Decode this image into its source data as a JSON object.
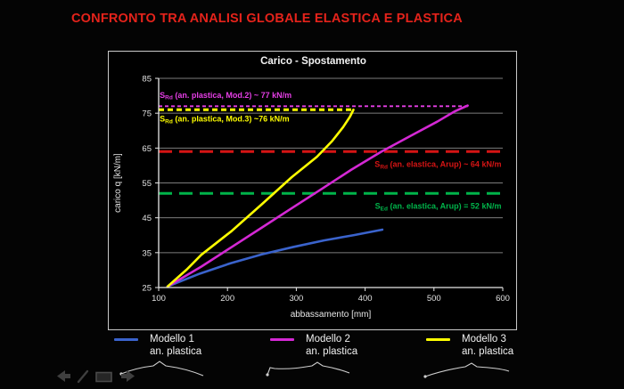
{
  "slide": {
    "title": "CONFRONTO TRA ANALISI GLOBALE ELASTICA E PLASTICA",
    "title_color": "#e5231b",
    "background": "#040404"
  },
  "chart_data": {
    "type": "line",
    "title": "Carico - Spostamento",
    "xlabel": "abbassamento [mm]",
    "ylabel": "carico q [kN/m]",
    "xlim": [
      100,
      600
    ],
    "ylim": [
      25,
      85
    ],
    "xticks": [
      100,
      200,
      300,
      400,
      500,
      600
    ],
    "yticks": [
      25,
      35,
      45,
      55,
      65,
      75,
      85
    ],
    "grid": true,
    "axis_color": "#e8e8e8",
    "grid_color": "#7d7d7d",
    "series": [
      {
        "name": "Modello 1 an. plastica",
        "color": "#3a63cc",
        "width": 2.6,
        "points": [
          [
            113,
            25.3
          ],
          [
            160,
            29
          ],
          [
            205,
            32
          ],
          [
            250,
            34.5
          ],
          [
            295,
            36.6
          ],
          [
            340,
            38.5
          ],
          [
            383,
            40
          ],
          [
            425,
            41.6
          ]
        ]
      },
      {
        "name": "Modello 2 an. plastica",
        "color": "#d428d4",
        "width": 2.6,
        "points": [
          [
            113,
            25.3
          ],
          [
            162,
            31
          ],
          [
            206,
            36.6
          ],
          [
            250,
            42.2
          ],
          [
            293,
            47.7
          ],
          [
            337,
            53.3
          ],
          [
            380,
            58.8
          ],
          [
            423,
            63.9
          ],
          [
            467,
            68.6
          ],
          [
            505,
            72.6
          ],
          [
            530,
            75.5
          ],
          [
            549,
            77.2
          ]
        ]
      },
      {
        "name": "Modello 3 an. plastica",
        "color": "#ffff00",
        "width": 2.6,
        "points": [
          [
            113,
            25.3
          ],
          [
            141,
            30.2
          ],
          [
            162,
            34.4
          ],
          [
            206,
            41.2
          ],
          [
            250,
            48.9
          ],
          [
            293,
            56.6
          ],
          [
            330,
            62.5
          ],
          [
            352,
            67
          ],
          [
            368,
            71
          ],
          [
            378,
            74
          ],
          [
            383,
            76
          ]
        ]
      }
    ],
    "reference_lines": [
      {
        "id": "srd-mod2",
        "value": 77,
        "x_start": 100,
        "x_end": 550,
        "color": "#e53ee5",
        "dash": "4,3",
        "width": 1.8,
        "label": {
          "sym": "S",
          "sub": "Rd",
          "text": " (an. plastica, Mod.2) ~ 77 kN/m"
        },
        "label_x": 101.5,
        "label_y": 79.4,
        "anchor": "start"
      },
      {
        "id": "srd-mod3",
        "value": 76,
        "x_start": 100,
        "x_end": 385,
        "color": "#ffff00",
        "dash": "6,4",
        "width": 3,
        "label": {
          "sym": "S",
          "sub": "Rd",
          "text": " (an. plastica, Mod.3) ~76 kN/m"
        },
        "label_x": 101.5,
        "label_y": 72.6,
        "anchor": "start"
      },
      {
        "id": "srd-elastica-arup",
        "value": 64,
        "x_start": 100,
        "x_end": 600,
        "color": "#d51414",
        "dash": "15,8",
        "width": 3,
        "label": {
          "sym": "S",
          "sub": "Rd",
          "text": " (an. elastica, Arup) ~ 64 kN/m"
        },
        "label_x": 598,
        "label_y": 59.6,
        "anchor": "end"
      },
      {
        "id": "sed-elastica-arup",
        "value": 52,
        "x_start": 100,
        "x_end": 600,
        "color": "#00b44a",
        "dash": "15,8",
        "width": 3,
        "label": {
          "sym": "S",
          "sub": "Ed",
          "text": " (an. elastica, Arup) = 52 kN/m"
        },
        "label_x": 598,
        "label_y": 47.6,
        "anchor": "end"
      }
    ]
  },
  "legend": {
    "items": [
      {
        "name": "Modello 1",
        "desc": "an. plastica",
        "color": "#3a63cc"
      },
      {
        "name": "Modello 2",
        "desc": "an. plastica",
        "color": "#d428d4"
      },
      {
        "name": "Modello 3",
        "desc": "an. plastica",
        "color": "#ffff00"
      }
    ]
  },
  "toolbar": {
    "icons": [
      "back-arrow",
      "pen-tool",
      "slide-menu",
      "forward-arrow"
    ]
  }
}
